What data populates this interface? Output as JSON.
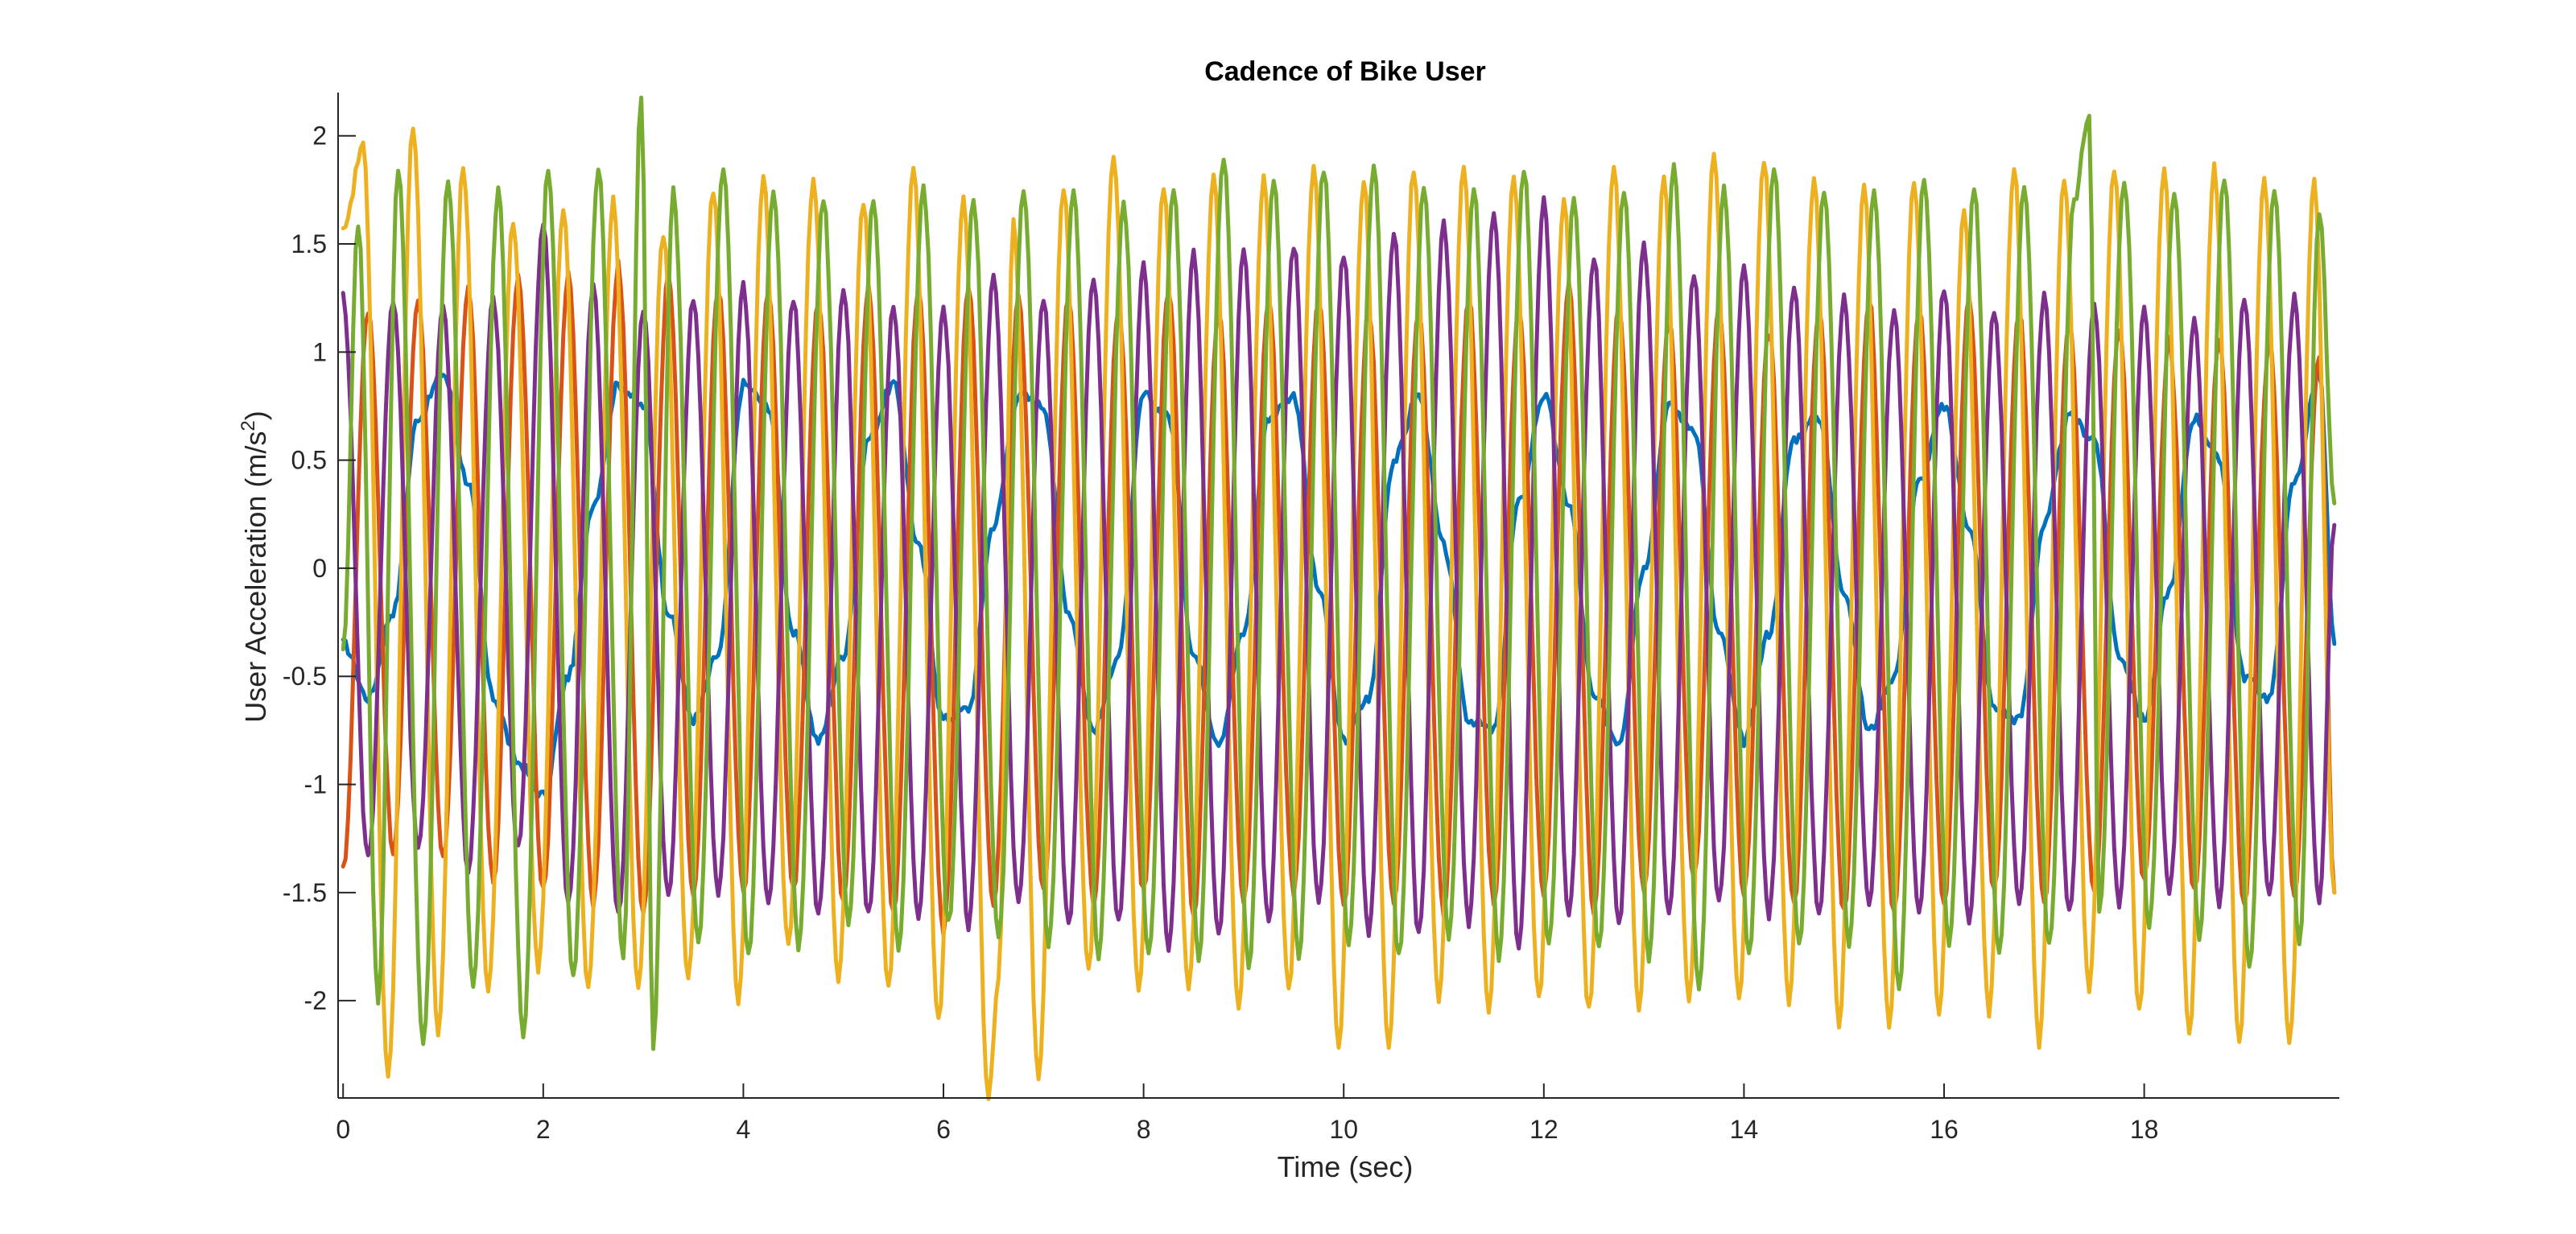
{
  "chart_data": {
    "type": "line",
    "title": "Cadence of Bike User",
    "xlabel": "Time (sec)",
    "ylabel_main": "User Acceleration (m/s",
    "ylabel_sup": "2",
    "ylabel_close": ")",
    "xlim": [
      -0.05,
      19.95
    ],
    "ylim": [
      -2.45,
      2.2
    ],
    "xticks": [
      0,
      2,
      4,
      6,
      8,
      10,
      12,
      14,
      16,
      18
    ],
    "xtick_labels": [
      "0",
      "2",
      "4",
      "6",
      "8",
      "10",
      "12",
      "14",
      "16",
      "18"
    ],
    "yticks": [
      2,
      1.5,
      1,
      0.5,
      0,
      -0.5,
      -1,
      -1.5,
      -2
    ],
    "ytick_labels": [
      "2",
      "1.5",
      "1",
      "0.5",
      "0",
      "-0.5",
      "-1",
      "-1.5",
      "-2"
    ],
    "sample_step": 0.05,
    "series": [
      {
        "color": "#0072BD",
        "x": [
          0,
          0.25,
          0.5,
          0.75,
          1,
          1.25,
          1.5,
          1.75,
          2,
          2.25,
          2.5,
          2.75,
          3,
          3.25,
          3.5,
          3.75,
          4,
          4.25,
          4.5,
          4.75,
          5,
          5.25,
          5.5,
          5.75,
          6,
          6.25,
          6.5,
          6.75,
          7,
          7.25,
          7.5,
          7.75,
          8,
          8.25,
          8.5,
          8.75,
          9,
          9.25,
          9.5,
          9.75,
          10,
          10.25,
          10.5,
          10.75,
          11,
          11.25,
          11.5,
          11.75,
          12,
          12.25,
          12.5,
          12.75,
          13,
          13.25,
          13.5,
          13.75,
          14,
          14.25,
          14.5,
          14.75,
          15,
          15.25,
          15.5,
          15.75,
          16,
          16.25,
          16.5,
          16.75,
          17,
          17.25,
          17.5,
          17.75,
          18,
          18.25,
          18.5,
          18.75,
          19,
          19.25,
          19.5,
          19.75,
          19.9
        ],
        "y": [
          -0.35,
          -0.6,
          -0.2,
          0.7,
          0.9,
          0.4,
          -0.6,
          -0.9,
          -1.05,
          -0.5,
          0.3,
          0.85,
          0.75,
          -0.2,
          -0.7,
          -0.4,
          0.85,
          0.75,
          -0.3,
          -0.8,
          -0.4,
          0.6,
          0.85,
          0.1,
          -0.7,
          -0.65,
          0.2,
          0.8,
          0.75,
          -0.2,
          -0.75,
          -0.4,
          0.8,
          0.7,
          -0.4,
          -0.8,
          -0.3,
          0.7,
          0.8,
          -0.1,
          -0.8,
          -0.6,
          0.5,
          0.8,
          0.1,
          -0.7,
          -0.75,
          0.3,
          0.8,
          0.3,
          -0.6,
          -0.8,
          0,
          0.75,
          0.65,
          -0.3,
          -0.8,
          -0.3,
          0.6,
          0.7,
          -0.1,
          -0.75,
          -0.5,
          0.4,
          0.75,
          0.2,
          -0.65,
          -0.7,
          0.2,
          0.7,
          0.6,
          -0.4,
          -0.7,
          -0.1,
          0.7,
          0.5,
          -0.5,
          -0.6,
          0.4,
          0.9,
          -0.35
        ]
      },
      {
        "color": "#D95319",
        "x": [
          0,
          0.25,
          0.5,
          0.75,
          1,
          1.25,
          1.5,
          1.75,
          2,
          2.25,
          2.5,
          2.75,
          3,
          3.25,
          3.5,
          3.75,
          4,
          4.25,
          4.5,
          4.75,
          5,
          5.25,
          5.5,
          5.75,
          6,
          6.25,
          6.5,
          6.75,
          7,
          7.25,
          7.5,
          7.75,
          8,
          8.25,
          8.5,
          8.75,
          9,
          9.25,
          9.5,
          9.75,
          10,
          10.25,
          10.5,
          10.75,
          11,
          11.25,
          11.5,
          11.75,
          12,
          12.25,
          12.5,
          12.75,
          13,
          13.25,
          13.5,
          13.75,
          14,
          14.25,
          14.5,
          14.75,
          15,
          15.25,
          15.5,
          15.75,
          16,
          16.25,
          16.5,
          16.75,
          17,
          17.25,
          17.5,
          17.75,
          18,
          18.25,
          18.5,
          18.75,
          19,
          19.25,
          19.5,
          19.75,
          19.9
        ],
        "y": [
          -1.4,
          1.2,
          -1.3,
          1.25,
          -1.35,
          1.3,
          -1.45,
          1.35,
          -1.5,
          1.35,
          -1.55,
          1.4,
          -1.6,
          1.35,
          -1.5,
          1.3,
          -1.5,
          1.3,
          -1.5,
          1.25,
          -1.55,
          1.3,
          -1.6,
          1.3,
          -1.7,
          1.3,
          -1.55,
          1.25,
          -1.5,
          1.25,
          -1.55,
          1.2,
          -1.5,
          1.3,
          -1.6,
          1.2,
          -1.55,
          1.25,
          -1.5,
          1.25,
          -1.55,
          1.2,
          -1.55,
          1.2,
          -1.6,
          1.25,
          -1.55,
          1.2,
          -1.5,
          1.3,
          -1.6,
          1.2,
          -1.5,
          1.15,
          -1.45,
          1.2,
          -1.5,
          1.1,
          -1.55,
          1.2,
          -1.6,
          1.25,
          -1.6,
          1.2,
          -1.55,
          1.25,
          -1.5,
          1.2,
          -1.55,
          1.15,
          -1.5,
          1.1,
          -1.45,
          1.05,
          -1.5,
          1.05,
          -1.55,
          1.05,
          -1.5,
          1.0,
          -1.5
        ]
      },
      {
        "color": "#EDB120",
        "x": [
          0,
          0.2,
          0.45,
          0.7,
          0.95,
          1.2,
          1.45,
          1.7,
          1.95,
          2.2,
          2.45,
          2.7,
          2.95,
          3.2,
          3.45,
          3.7,
          3.95,
          4.2,
          4.45,
          4.7,
          4.95,
          5.2,
          5.45,
          5.7,
          5.95,
          6.2,
          6.45,
          6.55,
          6.7,
          6.95,
          7.2,
          7.45,
          7.7,
          7.95,
          8.2,
          8.45,
          8.7,
          8.95,
          9.2,
          9.45,
          9.7,
          9.95,
          10.2,
          10.45,
          10.7,
          10.95,
          11.2,
          11.45,
          11.7,
          11.95,
          12.2,
          12.45,
          12.7,
          12.95,
          13.2,
          13.45,
          13.7,
          13.95,
          14.2,
          14.45,
          14.7,
          14.95,
          15.2,
          15.45,
          15.7,
          15.95,
          16.2,
          16.45,
          16.7,
          16.95,
          17.2,
          17.45,
          17.7,
          17.95,
          18.2,
          18.45,
          18.7,
          18.95,
          19.2,
          19.45,
          19.7,
          19.9
        ],
        "y": [
          1.55,
          1.95,
          -2.35,
          2.05,
          -2.15,
          1.85,
          -1.95,
          1.6,
          -1.85,
          1.65,
          -1.95,
          1.7,
          -1.95,
          1.55,
          -1.9,
          1.75,
          -2.0,
          1.8,
          -1.75,
          1.8,
          -1.9,
          1.7,
          -1.95,
          1.85,
          -2.1,
          1.7,
          -2.45,
          -1.9,
          1.6,
          -2.35,
          1.75,
          -1.85,
          1.9,
          -1.95,
          1.75,
          -1.95,
          1.8,
          -2.05,
          1.8,
          -1.95,
          1.85,
          -2.2,
          1.8,
          -2.2,
          1.85,
          -2.0,
          1.85,
          -2.05,
          1.8,
          -2.0,
          1.7,
          -2.05,
          1.85,
          -2.05,
          1.8,
          -2.0,
          1.9,
          -2.0,
          1.9,
          -2.0,
          1.8,
          -2.1,
          1.75,
          -2.1,
          1.8,
          -2.05,
          1.65,
          -2.05,
          1.85,
          -2.2,
          1.8,
          -1.95,
          1.85,
          -2.05,
          1.85,
          -2.15,
          1.85,
          -2.2,
          1.8,
          -2.2,
          1.8,
          -1.5
        ]
      },
      {
        "color": "#7E2F8E",
        "x": [
          0,
          0.25,
          0.5,
          0.75,
          1,
          1.25,
          1.5,
          1.75,
          2,
          2.25,
          2.5,
          2.75,
          3,
          3.25,
          3.5,
          3.75,
          4,
          4.25,
          4.5,
          4.75,
          5,
          5.25,
          5.5,
          5.75,
          6,
          6.25,
          6.5,
          6.75,
          7,
          7.25,
          7.5,
          7.75,
          8,
          8.25,
          8.5,
          8.75,
          9,
          9.25,
          9.5,
          9.75,
          10,
          10.25,
          10.5,
          10.75,
          11,
          11.25,
          11.5,
          11.75,
          12,
          12.25,
          12.5,
          12.75,
          13,
          13.25,
          13.5,
          13.75,
          14,
          14.25,
          14.5,
          14.75,
          15,
          15.25,
          15.5,
          15.75,
          16,
          16.25,
          16.5,
          16.75,
          17,
          17.25,
          17.5,
          17.75,
          18,
          18.25,
          18.5,
          18.75,
          19,
          19.25,
          19.5,
          19.75,
          19.9
        ],
        "y": [
          1.25,
          -1.35,
          1.25,
          -1.3,
          1.2,
          -1.4,
          1.25,
          -1.3,
          1.6,
          -1.55,
          1.3,
          -1.6,
          1.2,
          -1.5,
          1.25,
          -1.5,
          1.3,
          -1.55,
          1.25,
          -1.6,
          1.3,
          -1.6,
          1.2,
          -1.6,
          1.2,
          -1.65,
          1.35,
          -1.55,
          1.25,
          -1.65,
          1.35,
          -1.65,
          1.4,
          -1.75,
          1.45,
          -1.7,
          1.45,
          -1.65,
          1.5,
          -1.55,
          1.45,
          -1.7,
          1.55,
          -1.7,
          1.6,
          -1.65,
          1.65,
          -1.75,
          1.7,
          -1.6,
          1.45,
          -1.65,
          1.5,
          -1.6,
          1.35,
          -1.55,
          1.4,
          -1.6,
          1.3,
          -1.6,
          1.25,
          -1.55,
          1.2,
          -1.6,
          1.3,
          -1.65,
          1.2,
          -1.55,
          1.25,
          -1.6,
          1.2,
          -1.55,
          1.2,
          -1.5,
          1.15,
          -1.55,
          1.25,
          -1.5,
          1.25,
          -1.55,
          0.2
        ]
      },
      {
        "color": "#77AC30",
        "x": [
          0,
          0.15,
          0.35,
          0.55,
          0.8,
          1.05,
          1.3,
          1.55,
          1.8,
          2.05,
          2.3,
          2.55,
          2.8,
          2.98,
          3.1,
          3.3,
          3.55,
          3.8,
          4.05,
          4.3,
          4.55,
          4.8,
          5.05,
          5.3,
          5.55,
          5.8,
          6.05,
          6.3,
          6.55,
          6.8,
          7.05,
          7.3,
          7.55,
          7.8,
          8.05,
          8.3,
          8.55,
          8.8,
          9.05,
          9.3,
          9.55,
          9.8,
          10.05,
          10.3,
          10.55,
          10.8,
          11.05,
          11.3,
          11.55,
          11.8,
          12.05,
          12.3,
          12.55,
          12.8,
          13.05,
          13.3,
          13.55,
          13.8,
          14.05,
          14.3,
          14.55,
          14.8,
          15.05,
          15.3,
          15.55,
          15.8,
          16.05,
          16.3,
          16.55,
          16.8,
          17.05,
          17.3,
          17.45,
          17.55,
          17.8,
          18.05,
          18.3,
          18.55,
          18.8,
          19.05,
          19.3,
          19.55,
          19.75,
          19.9
        ],
        "y": [
          -0.4,
          1.6,
          -2.0,
          1.85,
          -2.2,
          1.8,
          -1.95,
          1.75,
          -2.15,
          1.85,
          -1.9,
          1.85,
          -1.8,
          2.2,
          -2.2,
          1.75,
          -1.75,
          1.85,
          -1.8,
          1.75,
          -1.75,
          1.7,
          -1.65,
          1.7,
          -1.75,
          1.75,
          -1.65,
          1.7,
          -1.7,
          1.75,
          -1.75,
          1.75,
          -1.8,
          1.7,
          -1.8,
          1.75,
          -1.8,
          1.9,
          -1.85,
          1.8,
          -1.8,
          1.85,
          -1.75,
          1.85,
          -1.8,
          1.75,
          -1.7,
          1.75,
          -1.8,
          1.85,
          -1.75,
          1.7,
          -1.75,
          1.75,
          -1.8,
          1.85,
          -1.95,
          1.75,
          -1.8,
          1.85,
          -1.75,
          1.75,
          -1.75,
          1.75,
          -1.95,
          1.8,
          -1.75,
          1.75,
          -1.8,
          1.75,
          -1.75,
          1.7,
          2.1,
          -1.6,
          1.8,
          -1.65,
          1.75,
          -1.7,
          1.8,
          -1.85,
          1.75,
          -1.75,
          1.65,
          0.3
        ]
      }
    ]
  }
}
